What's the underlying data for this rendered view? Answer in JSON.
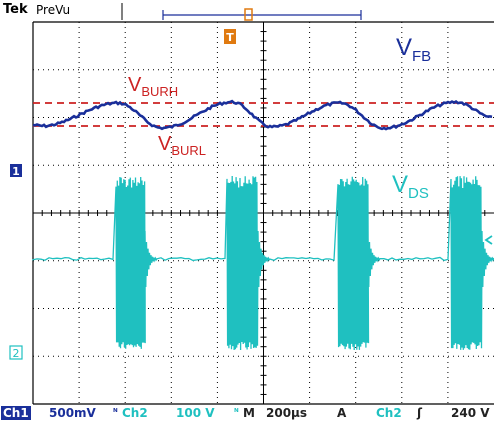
{
  "header": {
    "brand": "Tek",
    "mode": "PreVu"
  },
  "trigger_marker": "T",
  "channel_markers": {
    "ch1": "1",
    "ch2": "2"
  },
  "labels": {
    "vfb": {
      "main": "V",
      "sub": "FB"
    },
    "vburh": {
      "main": "V",
      "sub": "BURH"
    },
    "vburl": {
      "main": "V",
      "sub": "BURL"
    },
    "vds": {
      "main": "V",
      "sub": "DS"
    }
  },
  "status_bar": {
    "ch1_label": "Ch1",
    "ch1_scale": "500mV",
    "ch2_label": "Ch2",
    "ch2_scale": "100 V",
    "timebase_label": "M",
    "timebase": "200µs",
    "trigger_mode": "A",
    "trigger_source": "Ch2",
    "trigger_slope": "ʃ",
    "trigger_level": "240 V"
  },
  "colors": {
    "ch1": "#1a2f9a",
    "ch2": "#1fc0c0",
    "reference": "#cc2222",
    "trigger": "#e07a10",
    "graticule": "#000000"
  }
}
